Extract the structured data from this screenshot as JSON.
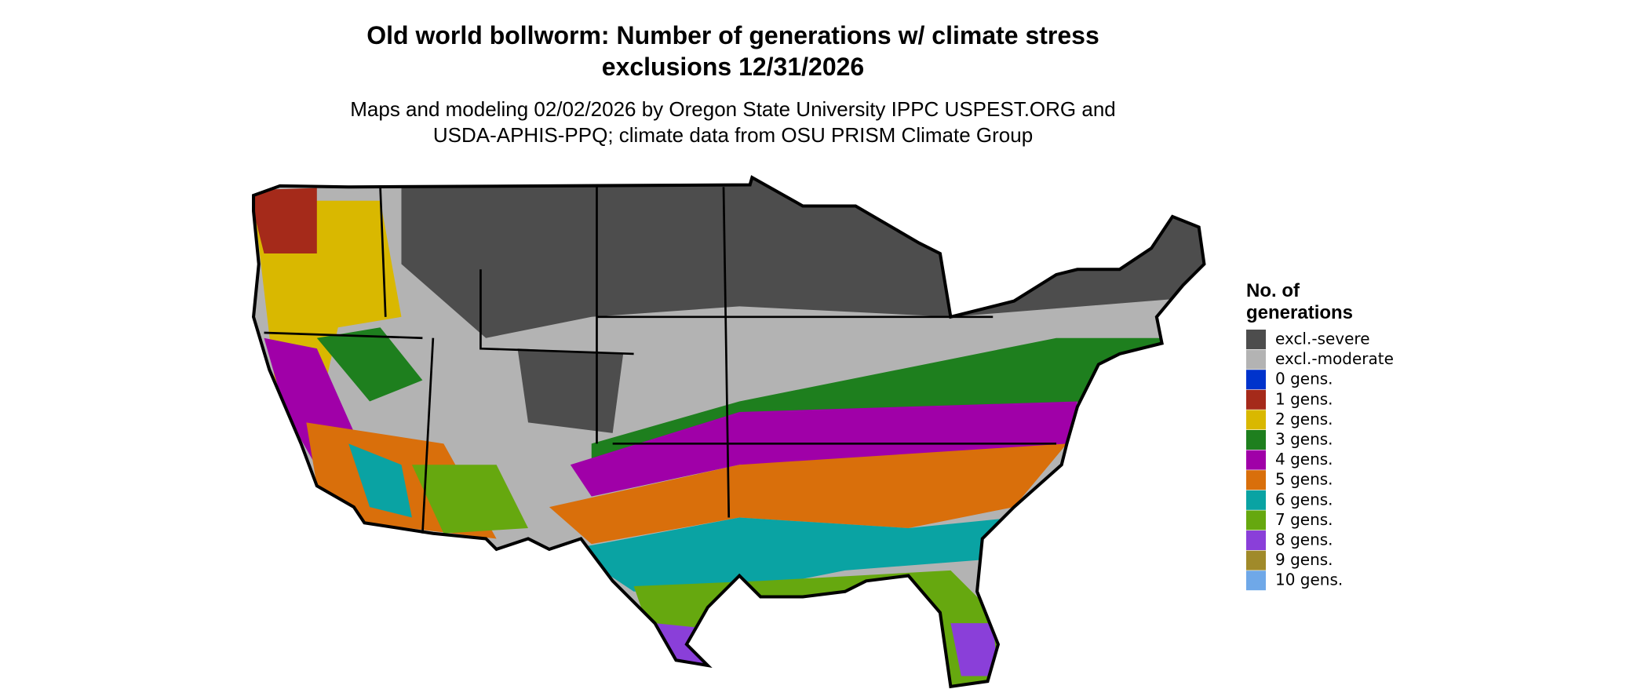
{
  "header": {
    "title": [
      "Old world bollworm: Number of generations w/ climate stress",
      "exclusions 12/31/2026"
    ],
    "subtitle": [
      "Maps and modeling 02/02/2026 by Oregon State University IPPC USPEST.ORG and",
      "USDA-APHIS-PPQ; climate data from OSU PRISM Climate Group"
    ]
  },
  "legend": {
    "title": [
      "No. of",
      "generations"
    ],
    "items": [
      {
        "label": "excl.-severe",
        "color": "#4d4d4d"
      },
      {
        "label": "excl.-moderate",
        "color": "#b3b3b3"
      },
      {
        "label": "0 gens.",
        "color": "#0033cc"
      },
      {
        "label": "1 gens.",
        "color": "#a52a1a"
      },
      {
        "label": "2 gens.",
        "color": "#d9b800"
      },
      {
        "label": "3 gens.",
        "color": "#1e7f1e"
      },
      {
        "label": "4 gens.",
        "color": "#a000a8"
      },
      {
        "label": "5 gens.",
        "color": "#d96f0b"
      },
      {
        "label": "6 gens.",
        "color": "#0aa3a3"
      },
      {
        "label": "7 gens.",
        "color": "#66a80f"
      },
      {
        "label": "8 gens.",
        "color": "#8a3fd9"
      },
      {
        "label": "9 gens.",
        "color": "#a08a2a"
      },
      {
        "label": "10 gens.",
        "color": "#6fa8e8"
      }
    ]
  }
}
